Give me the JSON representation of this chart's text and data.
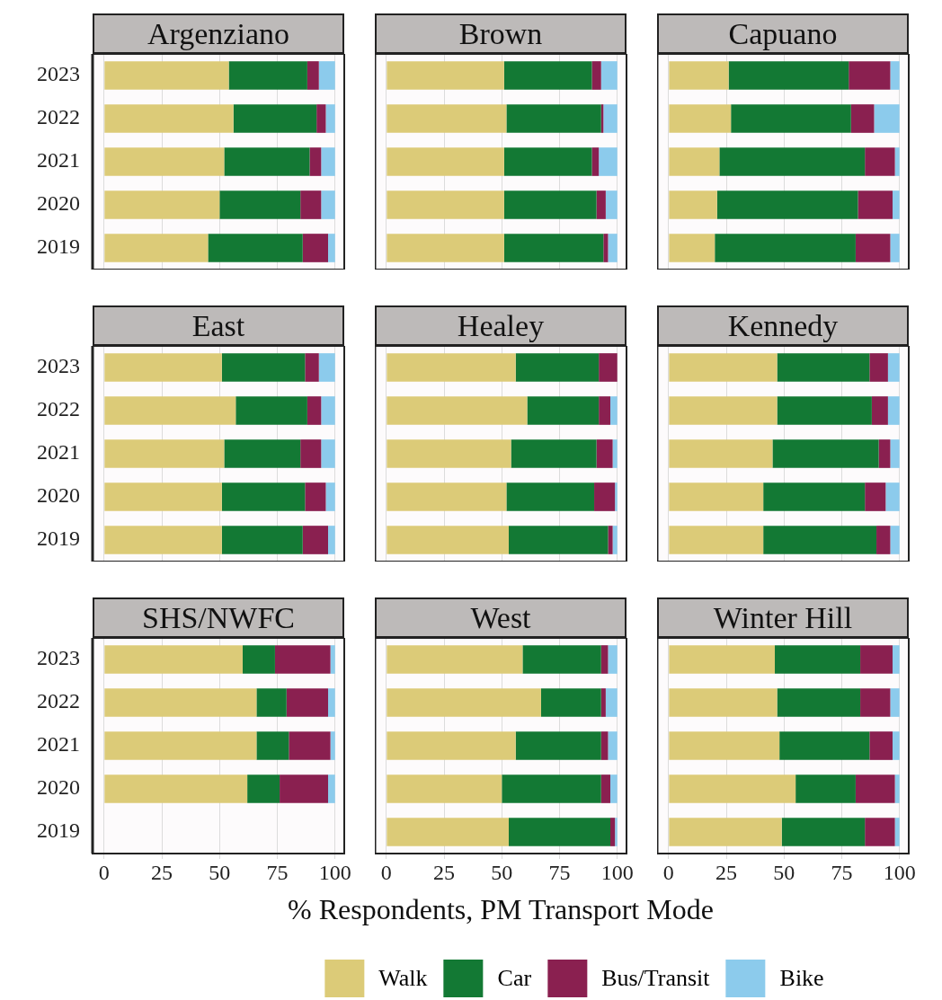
{
  "chart_data": [
    {
      "type": "bar",
      "orientation": "horizontal",
      "stacked": true,
      "title": "Argenziano",
      "categories": [
        "2023",
        "2022",
        "2021",
        "2020",
        "2019"
      ],
      "xlim": [
        -5,
        104
      ],
      "xticks": [
        0,
        25,
        50,
        75,
        100
      ],
      "grid": "x",
      "tick_labels": "y",
      "series": [
        {
          "color": "#dccb78",
          "values": [
            54,
            56,
            52,
            50,
            45
          ]
        },
        {
          "color": "#137934",
          "values": [
            34,
            36,
            37,
            35,
            41
          ]
        },
        {
          "color": "#8a2050",
          "values": [
            5,
            4,
            5,
            9,
            11
          ]
        },
        {
          "color": "#8ccbec",
          "values": [
            7,
            4,
            6,
            6,
            3
          ]
        }
      ]
    },
    {
      "type": "bar",
      "orientation": "horizontal",
      "stacked": true,
      "title": "Brown",
      "categories": [
        "2023",
        "2022",
        "2021",
        "2020",
        "2019"
      ],
      "xlim": [
        -5,
        104
      ],
      "xticks": [
        0,
        25,
        50,
        75,
        100
      ],
      "grid": "x",
      "tick_labels": false,
      "series": [
        {
          "color": "#dccb78",
          "values": [
            51,
            52,
            51,
            51,
            51
          ]
        },
        {
          "color": "#137934",
          "values": [
            38,
            41,
            38,
            40,
            43
          ]
        },
        {
          "color": "#8a2050",
          "values": [
            4,
            1,
            3,
            4,
            2
          ]
        },
        {
          "color": "#8ccbec",
          "values": [
            7,
            6,
            8,
            5,
            4
          ]
        }
      ]
    },
    {
      "type": "bar",
      "orientation": "horizontal",
      "stacked": true,
      "title": "Capuano",
      "categories": [
        "2023",
        "2022",
        "2021",
        "2020",
        "2019"
      ],
      "xlim": [
        -5,
        104
      ],
      "xticks": [
        0,
        25,
        50,
        75,
        100
      ],
      "grid": "x",
      "tick_labels": false,
      "series": [
        {
          "color": "#dccb78",
          "values": [
            26,
            27,
            22,
            21,
            20
          ]
        },
        {
          "color": "#137934",
          "values": [
            52,
            52,
            63,
            61,
            61
          ]
        },
        {
          "color": "#8a2050",
          "values": [
            18,
            10,
            13,
            15,
            15
          ]
        },
        {
          "color": "#8ccbec",
          "values": [
            4,
            11,
            2,
            3,
            4
          ]
        }
      ]
    },
    {
      "type": "bar",
      "orientation": "horizontal",
      "stacked": true,
      "title": "East",
      "categories": [
        "2023",
        "2022",
        "2021",
        "2020",
        "2019"
      ],
      "xlim": [
        -5,
        104
      ],
      "xticks": [
        0,
        25,
        50,
        75,
        100
      ],
      "grid": "x",
      "tick_labels": "y",
      "series": [
        {
          "color": "#dccb78",
          "values": [
            51,
            57,
            52,
            51,
            51
          ]
        },
        {
          "color": "#137934",
          "values": [
            36,
            31,
            33,
            36,
            35
          ]
        },
        {
          "color": "#8a2050",
          "values": [
            6,
            6,
            9,
            9,
            11
          ]
        },
        {
          "color": "#8ccbec",
          "values": [
            7,
            6,
            6,
            4,
            3
          ]
        }
      ]
    },
    {
      "type": "bar",
      "orientation": "horizontal",
      "stacked": true,
      "title": "Healey",
      "categories": [
        "2023",
        "2022",
        "2021",
        "2020",
        "2019"
      ],
      "xlim": [
        -5,
        104
      ],
      "xticks": [
        0,
        25,
        50,
        75,
        100
      ],
      "grid": "x",
      "tick_labels": false,
      "series": [
        {
          "color": "#dccb78",
          "values": [
            56,
            61,
            54,
            52,
            53
          ]
        },
        {
          "color": "#137934",
          "values": [
            36,
            31,
            37,
            38,
            43
          ]
        },
        {
          "color": "#8a2050",
          "values": [
            8,
            5,
            7,
            9,
            2
          ]
        },
        {
          "color": "#8ccbec",
          "values": [
            null,
            3,
            2,
            1,
            2
          ]
        }
      ]
    },
    {
      "type": "bar",
      "orientation": "horizontal",
      "stacked": true,
      "title": "Kennedy",
      "categories": [
        "2023",
        "2022",
        "2021",
        "2020",
        "2019"
      ],
      "xlim": [
        -5,
        104
      ],
      "xticks": [
        0,
        25,
        50,
        75,
        100
      ],
      "grid": "x",
      "tick_labels": false,
      "series": [
        {
          "color": "#dccb78",
          "values": [
            47,
            47,
            45,
            41,
            41
          ]
        },
        {
          "color": "#137934",
          "values": [
            40,
            41,
            46,
            44,
            49
          ]
        },
        {
          "color": "#8a2050",
          "values": [
            8,
            7,
            5,
            9,
            6
          ]
        },
        {
          "color": "#8ccbec",
          "values": [
            5,
            5,
            4,
            6,
            4
          ]
        }
      ]
    },
    {
      "type": "bar",
      "orientation": "horizontal",
      "stacked": true,
      "title": "SHS/NWFC",
      "categories": [
        "2023",
        "2022",
        "2021",
        "2020",
        "2019"
      ],
      "xlim": [
        -5,
        104
      ],
      "xticks": [
        0,
        25,
        50,
        75,
        100
      ],
      "grid": "x",
      "series": [
        {
          "color": "#dccb78",
          "values": [
            60,
            66,
            66,
            62,
            null
          ]
        },
        {
          "color": "#137934",
          "values": [
            14,
            13,
            14,
            14,
            null
          ]
        },
        {
          "color": "#8a2050",
          "values": [
            24,
            18,
            18,
            21,
            null
          ]
        },
        {
          "color": "#8ccbec",
          "values": [
            2,
            3,
            2,
            3,
            null
          ]
        }
      ]
    },
    {
      "type": "bar",
      "orientation": "horizontal",
      "stacked": true,
      "title": "West",
      "xlabel": "% Respondents, PM Transport Mode",
      "legend": "bottom",
      "categories": [
        "2023",
        "2022",
        "2021",
        "2020",
        "2019"
      ],
      "xlim": [
        -5,
        104
      ],
      "xticks": [
        0,
        25,
        50,
        75,
        100
      ],
      "grid": "x",
      "tick_labels": "x",
      "series": [
        {
          "name": "Walk",
          "color": "#dccb78",
          "values": [
            59,
            67,
            56,
            50,
            53
          ]
        },
        {
          "name": "Car",
          "color": "#137934",
          "values": [
            34,
            26,
            37,
            43,
            44
          ]
        },
        {
          "name": "Bus/Transit",
          "color": "#8a2050",
          "values": [
            3,
            2,
            3,
            4,
            2
          ]
        },
        {
          "name": "Bike",
          "color": "#8ccbec",
          "values": [
            4,
            5,
            4,
            3,
            1
          ]
        }
      ]
    },
    {
      "type": "bar",
      "orientation": "horizontal",
      "stacked": true,
      "title": "Winter Hill",
      "categories": [
        "2023",
        "2022",
        "2021",
        "2020",
        "2019"
      ],
      "xlim": [
        -5,
        104
      ],
      "xticks": [
        0,
        25,
        50,
        75,
        100
      ],
      "grid": "x",
      "tick_labels": "x",
      "series": [
        {
          "color": "#dccb78",
          "values": [
            46,
            47,
            48,
            55,
            49
          ]
        },
        {
          "color": "#137934",
          "values": [
            37,
            36,
            39,
            26,
            36
          ]
        },
        {
          "color": "#8a2050",
          "values": [
            14,
            13,
            10,
            17,
            13
          ]
        },
        {
          "color": "#8ccbec",
          "values": [
            3,
            4,
            3,
            2,
            2
          ]
        }
      ]
    }
  ]
}
